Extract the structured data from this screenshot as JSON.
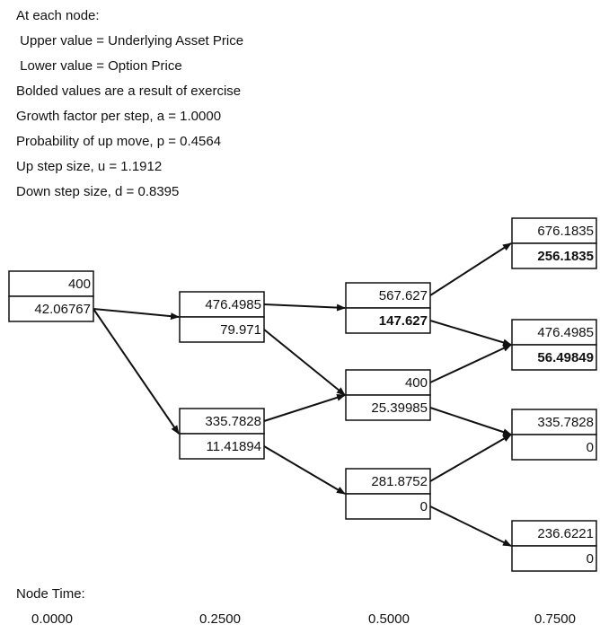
{
  "notes": [
    "At each node:",
    " Upper value = Underlying Asset Price",
    " Lower value = Option Price",
    "Bolded values are a result of exercise",
    "Growth factor per step, a = 1.0000",
    "Probability of up move, p = 0.4564",
    "Up step size, u = 1.1912",
    "Down step size, d = 0.8395"
  ],
  "nodes": [
    {
      "upper": "400",
      "lower": "42.06767",
      "bold": false
    },
    {
      "upper": "476.4985",
      "lower": "79.971",
      "bold": false
    },
    {
      "upper": "335.7828",
      "lower": "11.41894",
      "bold": false
    },
    {
      "upper": "567.627",
      "lower": "147.627",
      "bold": true
    },
    {
      "upper": "400",
      "lower": "25.39985",
      "bold": false
    },
    {
      "upper": "281.8752",
      "lower": "0",
      "bold": false
    },
    {
      "upper": "676.1835",
      "lower": "256.1835",
      "bold": true
    },
    {
      "upper": "476.4985",
      "lower": "56.49849",
      "bold": true
    },
    {
      "upper": "335.7828",
      "lower": "0",
      "bold": false
    },
    {
      "upper": "236.6221",
      "lower": "0",
      "bold": false
    }
  ],
  "node_time": {
    "label": "Node Time:",
    "times": [
      "0.0000",
      "0.2500",
      "0.5000",
      "0.7500"
    ]
  }
}
